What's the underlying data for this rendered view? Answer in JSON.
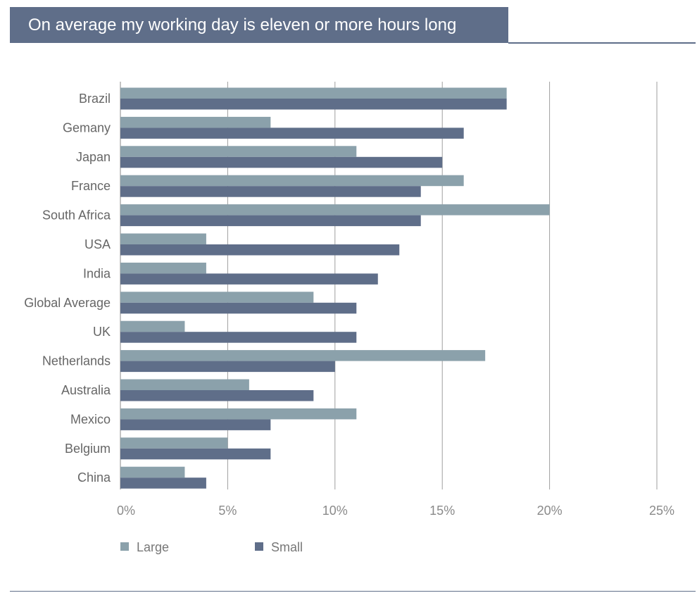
{
  "title": "On average my working day is eleven or more hours long",
  "chart_data": {
    "type": "bar",
    "orientation": "horizontal",
    "title": "On average my working day is eleven or more hours long",
    "categories": [
      "Brazil",
      "Gemany",
      "Japan",
      "France",
      "South Africa",
      "USA",
      "India",
      "Global Average",
      "UK",
      "Netherlands",
      "Australia",
      "Mexico",
      "Belgium",
      "China"
    ],
    "series": [
      {
        "name": "Large",
        "color": "#8ba1ab",
        "values": [
          18,
          7,
          11,
          16,
          20,
          4,
          4,
          9,
          3,
          17,
          6,
          11,
          5,
          3
        ]
      },
      {
        "name": "Small",
        "color": "#5f6e89",
        "values": [
          18,
          16,
          15,
          14,
          14,
          13,
          12,
          11,
          11,
          10,
          9,
          7,
          7,
          4
        ]
      }
    ],
    "xlim": [
      0,
      25
    ],
    "xticks": [
      0,
      5,
      10,
      15,
      20,
      25
    ],
    "xtick_labels": [
      "0%",
      "5%",
      "10%",
      "15%",
      "20%",
      "25%"
    ],
    "grid": "vertical",
    "legend_position": "bottom-left"
  }
}
